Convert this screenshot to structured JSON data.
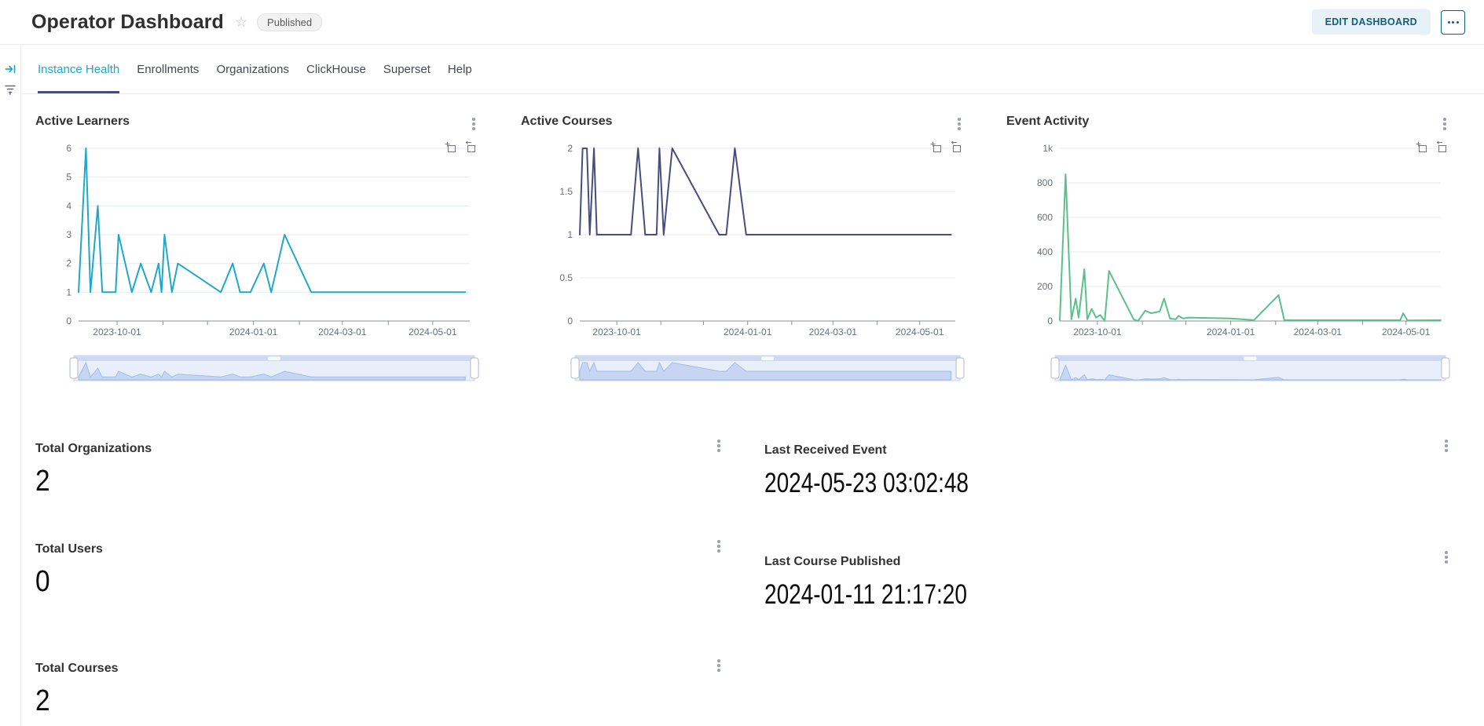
{
  "header": {
    "title": "Operator Dashboard",
    "status_badge": "Published",
    "edit_button": "EDIT DASHBOARD"
  },
  "tabs": [
    {
      "label": "Instance Health",
      "active": true
    },
    {
      "label": "Enrollments",
      "active": false
    },
    {
      "label": "Organizations",
      "active": false
    },
    {
      "label": "ClickHouse",
      "active": false
    },
    {
      "label": "Superset",
      "active": false
    },
    {
      "label": "Help",
      "active": false
    }
  ],
  "colors": {
    "accent": "#20a7c9",
    "active_tab_underline": "#454e7c",
    "learners_line": "#1FA8C9",
    "courses_line": "#454E7C",
    "events_line": "#5AC189",
    "button_text": "#11607a"
  },
  "chart_data": [
    {
      "type": "line",
      "title": "Active Learners",
      "color": "#1FA8C9",
      "y_max": 6,
      "x_domain": [
        "2023-09-05",
        "2024-05-26"
      ],
      "y_ticks": [
        {
          "value": 0,
          "label": "0"
        },
        {
          "value": 1,
          "label": "1"
        },
        {
          "value": 2,
          "label": "2"
        },
        {
          "value": 3,
          "label": "3"
        },
        {
          "value": 4,
          "label": "4"
        },
        {
          "value": 5,
          "label": "5"
        },
        {
          "value": 6,
          "label": "6"
        }
      ],
      "x_ticks": [
        {
          "date": "2023-10-01",
          "label": "2023-10-01"
        },
        {
          "date": "2023-11-01",
          "label": ""
        },
        {
          "date": "2023-12-01",
          "label": ""
        },
        {
          "date": "2024-01-01",
          "label": "2024-01-01"
        },
        {
          "date": "2024-02-01",
          "label": ""
        },
        {
          "date": "2024-03-01",
          "label": "2024-03-01"
        },
        {
          "date": "2024-04-01",
          "label": ""
        },
        {
          "date": "2024-05-01",
          "label": "2024-05-01"
        }
      ],
      "series": [
        [
          "2023-09-05",
          1
        ],
        [
          "2023-09-10",
          6
        ],
        [
          "2023-09-13",
          1
        ],
        [
          "2023-09-18",
          4
        ],
        [
          "2023-09-21",
          1
        ],
        [
          "2023-09-30",
          1
        ],
        [
          "2023-10-02",
          3
        ],
        [
          "2023-10-11",
          1
        ],
        [
          "2023-10-17",
          2
        ],
        [
          "2023-10-24",
          1
        ],
        [
          "2023-10-29",
          2
        ],
        [
          "2023-10-31",
          1
        ],
        [
          "2023-11-02",
          3
        ],
        [
          "2023-11-07",
          1
        ],
        [
          "2023-11-11",
          2
        ],
        [
          "2023-12-10",
          1
        ],
        [
          "2023-12-18",
          2
        ],
        [
          "2023-12-23",
          1
        ],
        [
          "2023-12-30",
          1
        ],
        [
          "2024-01-08",
          2
        ],
        [
          "2024-01-13",
          1
        ],
        [
          "2024-01-22",
          3
        ],
        [
          "2024-02-09",
          1
        ],
        [
          "2024-05-23",
          1
        ]
      ]
    },
    {
      "type": "line",
      "title": "Active Courses",
      "color": "#454E7C",
      "y_max": 2,
      "x_domain": [
        "2023-09-05",
        "2024-05-26"
      ],
      "y_ticks": [
        {
          "value": 0,
          "label": "0"
        },
        {
          "value": 0.5,
          "label": "0.5"
        },
        {
          "value": 1,
          "label": "1"
        },
        {
          "value": 1.5,
          "label": "1.5"
        },
        {
          "value": 2,
          "label": "2"
        }
      ],
      "x_ticks": [
        {
          "date": "2023-10-01",
          "label": "2023-10-01"
        },
        {
          "date": "2023-11-01",
          "label": ""
        },
        {
          "date": "2023-12-01",
          "label": ""
        },
        {
          "date": "2024-01-01",
          "label": "2024-01-01"
        },
        {
          "date": "2024-02-01",
          "label": ""
        },
        {
          "date": "2024-03-01",
          "label": "2024-03-01"
        },
        {
          "date": "2024-04-01",
          "label": ""
        },
        {
          "date": "2024-05-01",
          "label": "2024-05-01"
        }
      ],
      "series": [
        [
          "2023-09-05",
          1
        ],
        [
          "2023-09-07",
          2
        ],
        [
          "2023-09-10",
          2
        ],
        [
          "2023-09-12",
          1
        ],
        [
          "2023-09-15",
          2
        ],
        [
          "2023-09-17",
          1
        ],
        [
          "2023-10-11",
          1
        ],
        [
          "2023-10-16",
          2
        ],
        [
          "2023-10-21",
          1
        ],
        [
          "2023-10-29",
          1
        ],
        [
          "2023-10-31",
          2
        ],
        [
          "2023-11-03",
          1
        ],
        [
          "2023-11-09",
          2
        ],
        [
          "2023-12-12",
          1
        ],
        [
          "2023-12-17",
          1
        ],
        [
          "2023-12-23",
          2
        ],
        [
          "2023-12-31",
          1
        ],
        [
          "2024-05-23",
          1
        ]
      ]
    },
    {
      "type": "line",
      "title": "Event Activity",
      "color": "#5AC189",
      "y_max": 1000,
      "x_domain": [
        "2023-09-05",
        "2024-05-25"
      ],
      "y_ticks": [
        {
          "value": 0,
          "label": "0"
        },
        {
          "value": 200,
          "label": "200"
        },
        {
          "value": 400,
          "label": "400"
        },
        {
          "value": 600,
          "label": "600"
        },
        {
          "value": 800,
          "label": "800"
        },
        {
          "value": 1000,
          "label": "1k"
        }
      ],
      "x_ticks": [
        {
          "date": "2023-10-01",
          "label": "2023-10-01"
        },
        {
          "date": "2023-11-01",
          "label": ""
        },
        {
          "date": "2023-12-01",
          "label": ""
        },
        {
          "date": "2024-01-01",
          "label": "2024-01-01"
        },
        {
          "date": "2024-02-01",
          "label": ""
        },
        {
          "date": "2024-03-01",
          "label": "2024-03-01"
        },
        {
          "date": "2024-04-01",
          "label": ""
        },
        {
          "date": "2024-05-01",
          "label": "2024-05-01"
        }
      ],
      "series": [
        [
          "2023-09-05",
          5
        ],
        [
          "2023-09-09",
          850
        ],
        [
          "2023-09-13",
          10
        ],
        [
          "2023-09-16",
          130
        ],
        [
          "2023-09-18",
          20
        ],
        [
          "2023-09-22",
          300
        ],
        [
          "2023-09-24",
          10
        ],
        [
          "2023-09-27",
          70
        ],
        [
          "2023-09-30",
          20
        ],
        [
          "2023-10-03",
          35
        ],
        [
          "2023-10-06",
          0
        ],
        [
          "2023-10-09",
          290
        ],
        [
          "2023-10-26",
          10
        ],
        [
          "2023-10-29",
          0
        ],
        [
          "2023-11-03",
          60
        ],
        [
          "2023-11-07",
          45
        ],
        [
          "2023-11-13",
          55
        ],
        [
          "2023-11-16",
          130
        ],
        [
          "2023-11-20",
          15
        ],
        [
          "2023-11-24",
          10
        ],
        [
          "2023-11-26",
          30
        ],
        [
          "2023-11-29",
          15
        ],
        [
          "2023-12-03",
          20
        ],
        [
          "2024-01-01",
          15
        ],
        [
          "2024-01-17",
          5
        ],
        [
          "2024-02-03",
          150
        ],
        [
          "2024-02-07",
          5
        ],
        [
          "2024-04-27",
          5
        ],
        [
          "2024-04-29",
          45
        ],
        [
          "2024-05-02",
          3
        ],
        [
          "2024-05-25",
          5
        ]
      ]
    }
  ],
  "big_numbers": [
    {
      "title": "Total Organizations",
      "value": "2"
    },
    {
      "title": "Last Received Event",
      "value": "2024-05-23 03:02:48"
    },
    {
      "title": "Total Users",
      "value": "0"
    },
    {
      "title": "Last Course Published",
      "value": "2024-01-11 21:17:20"
    },
    {
      "title": "Total Courses",
      "value": "2"
    }
  ]
}
